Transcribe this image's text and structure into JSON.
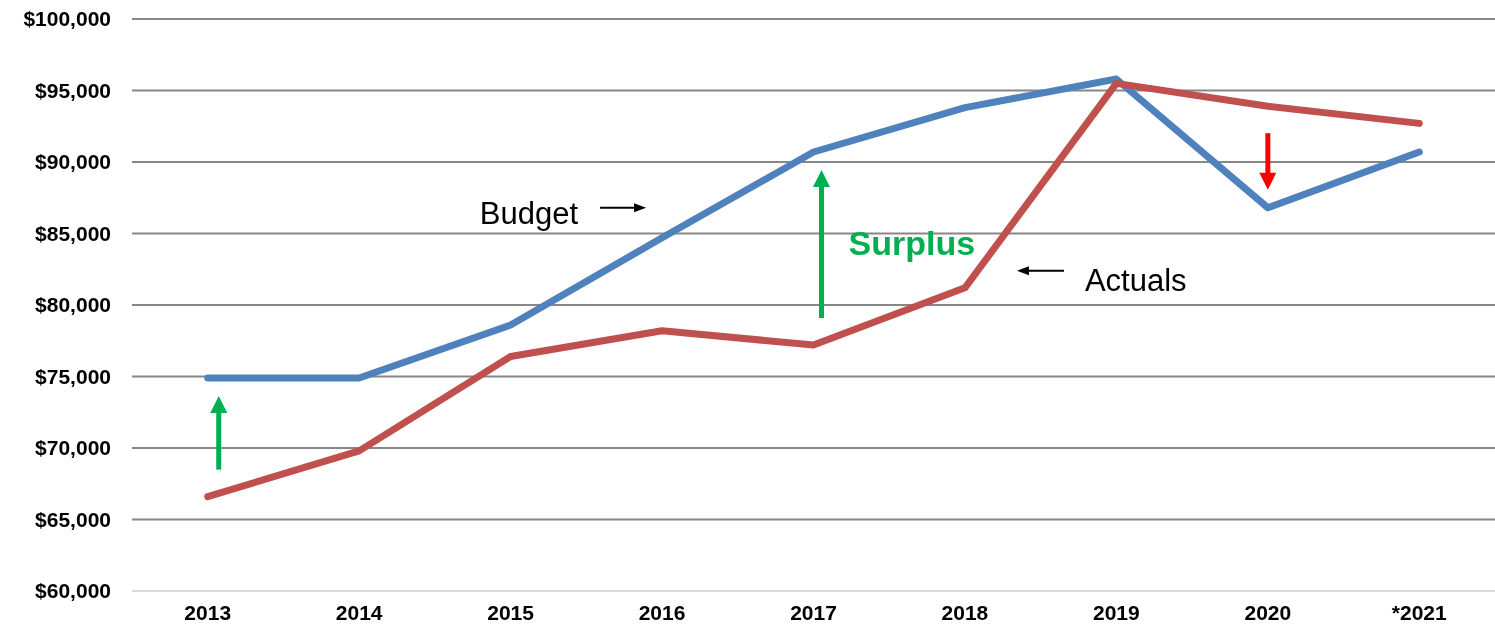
{
  "chart_data": {
    "type": "line",
    "categories": [
      "2013",
      "2014",
      "2015",
      "2016",
      "2017",
      "2018",
      "2019",
      "2020",
      "*2021"
    ],
    "series": [
      {
        "name": "Budget",
        "color": "#4f81bd",
        "values": [
          74900,
          74900,
          78600,
          84700,
          90700,
          93800,
          95800,
          86800,
          90700
        ]
      },
      {
        "name": "Actuals",
        "color": "#c0504d",
        "values": [
          66600,
          69800,
          76400,
          78200,
          77200,
          81200,
          95500,
          93900,
          92700
        ]
      }
    ],
    "ylim": [
      60000,
      100000
    ],
    "yticks": [
      {
        "value": 60000,
        "label": "$60,000"
      },
      {
        "value": 65000,
        "label": "$65,000"
      },
      {
        "value": 70000,
        "label": "$70,000"
      },
      {
        "value": 75000,
        "label": "$75,000"
      },
      {
        "value": 80000,
        "label": "$80,000"
      },
      {
        "value": 85000,
        "label": "$85,000"
      },
      {
        "value": 90000,
        "label": "$90,000"
      },
      {
        "value": 95000,
        "label": "$95,000"
      },
      {
        "value": 100000,
        "label": "$100,000"
      }
    ],
    "grid": "y",
    "annotations": [
      "Surplus"
    ]
  }
}
